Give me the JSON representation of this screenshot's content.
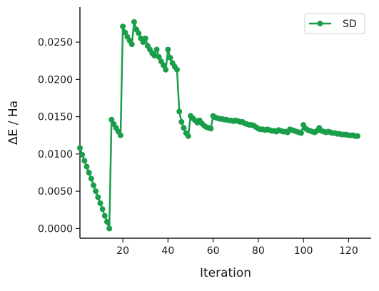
{
  "chart_data": {
    "type": "line",
    "title": "",
    "xlabel": "Iteration",
    "ylabel": "ΔE / Ha",
    "xlim": [
      1,
      130
    ],
    "ylim": [
      -0.0013,
      0.0295
    ],
    "xticks": [
      20,
      40,
      60,
      80,
      100,
      120
    ],
    "xtick_labels": [
      "20",
      "40",
      "60",
      "80",
      "100",
      "120"
    ],
    "yticks": [
      0.0,
      0.005,
      0.01,
      0.015,
      0.02,
      0.025
    ],
    "ytick_labels": [
      "0.0000",
      "0.0050",
      "0.0100",
      "0.0150",
      "0.0200",
      "0.0250"
    ],
    "grid": false,
    "legend_position": "top-right",
    "series": [
      {
        "name": "SD",
        "color": "#1a9e4a",
        "marker": "circle",
        "x": [
          1,
          2,
          3,
          4,
          5,
          6,
          7,
          8,
          9,
          10,
          11,
          12,
          13,
          14,
          15,
          16,
          17,
          18,
          19,
          20,
          21,
          22,
          23,
          24,
          25,
          26,
          27,
          28,
          29,
          30,
          31,
          32,
          33,
          34,
          35,
          36,
          37,
          38,
          39,
          40,
          41,
          42,
          43,
          44,
          45,
          46,
          47,
          48,
          49,
          50,
          51,
          52,
          53,
          54,
          55,
          56,
          57,
          58,
          59,
          60,
          61,
          62,
          63,
          64,
          65,
          66,
          67,
          68,
          69,
          70,
          71,
          72,
          73,
          74,
          75,
          76,
          77,
          78,
          79,
          80,
          81,
          82,
          83,
          84,
          85,
          86,
          87,
          88,
          89,
          90,
          91,
          92,
          93,
          94,
          95,
          96,
          97,
          98,
          99,
          100,
          101,
          102,
          103,
          104,
          105,
          106,
          107,
          108,
          109,
          110,
          111,
          112,
          113,
          114,
          115,
          116,
          117,
          118,
          119,
          120,
          121,
          122,
          123,
          124
        ],
        "values": [
          0.0108,
          0.0099,
          0.0091,
          0.0083,
          0.0075,
          0.0067,
          0.0058,
          0.005,
          0.0042,
          0.0034,
          0.0026,
          0.0017,
          0.0009,
          0.0,
          0.0146,
          0.014,
          0.0135,
          0.013,
          0.0125,
          0.0271,
          0.0263,
          0.0257,
          0.0252,
          0.0247,
          0.0277,
          0.0267,
          0.0262,
          0.0255,
          0.025,
          0.0255,
          0.0245,
          0.024,
          0.0235,
          0.0232,
          0.024,
          0.023,
          0.0224,
          0.0219,
          0.0213,
          0.024,
          0.0229,
          0.0222,
          0.0217,
          0.0213,
          0.0157,
          0.0143,
          0.0135,
          0.0128,
          0.0124,
          0.0151,
          0.0148,
          0.0145,
          0.0142,
          0.0145,
          0.0141,
          0.0138,
          0.0136,
          0.0135,
          0.0134,
          0.0151,
          0.0149,
          0.0148,
          0.0147,
          0.0147,
          0.0146,
          0.0146,
          0.0145,
          0.0145,
          0.0144,
          0.0145,
          0.0144,
          0.0143,
          0.0143,
          0.0141,
          0.014,
          0.0139,
          0.0139,
          0.0138,
          0.0136,
          0.0134,
          0.0133,
          0.0133,
          0.0132,
          0.0133,
          0.0132,
          0.0131,
          0.0131,
          0.013,
          0.0132,
          0.0131,
          0.013,
          0.013,
          0.0129,
          0.0133,
          0.0132,
          0.0131,
          0.013,
          0.0129,
          0.0128,
          0.0139,
          0.0134,
          0.0132,
          0.0131,
          0.013,
          0.0129,
          0.0131,
          0.0135,
          0.0131,
          0.013,
          0.0129,
          0.013,
          0.0129,
          0.0128,
          0.0128,
          0.0127,
          0.0127,
          0.0126,
          0.0126,
          0.0126,
          0.0125,
          0.0125,
          0.0125,
          0.0124,
          0.0124
        ]
      }
    ]
  }
}
